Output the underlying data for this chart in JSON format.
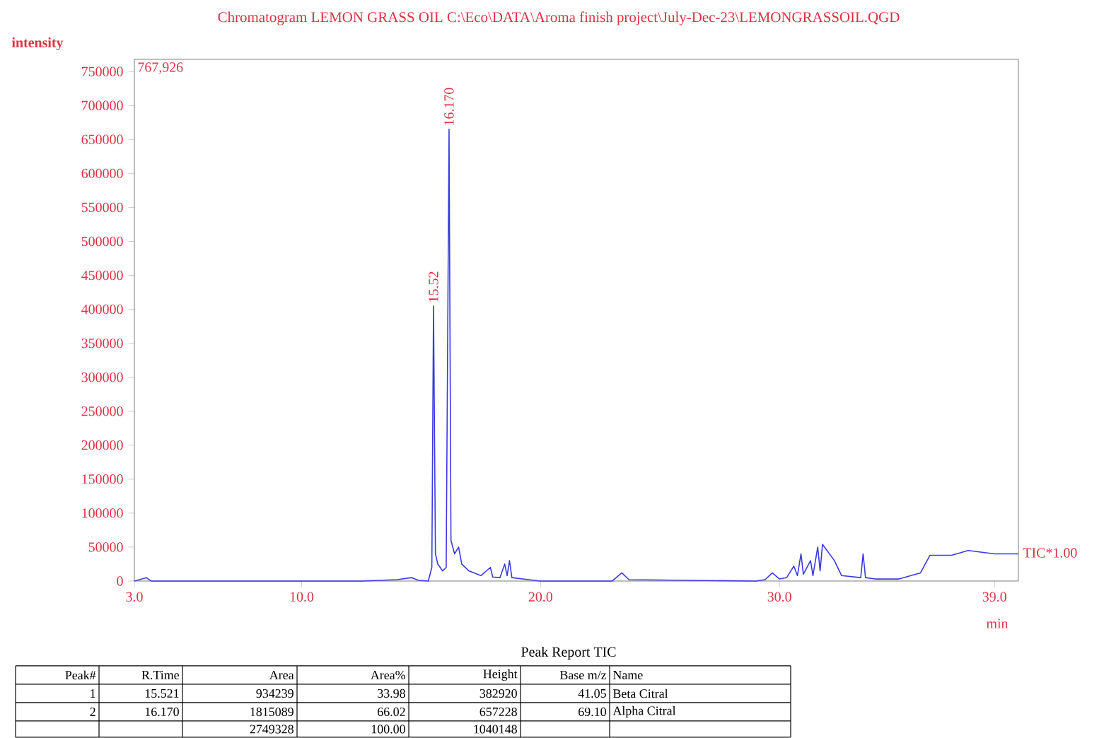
{
  "chart_data": {
    "type": "line",
    "title": "Chromatogram LEMON GRASS OIL C:\\Eco\\DATA\\Aroma finish project\\July-Dec-23\\LEMONGRASSOIL.QGD",
    "ylabel": "intensity",
    "xlabel": "min",
    "x": [
      3.0,
      3.5,
      3.7,
      12.5,
      14.0,
      14.6,
      14.9,
      15.3,
      15.45,
      15.52,
      15.6,
      15.7,
      15.9,
      16.05,
      16.17,
      16.25,
      16.4,
      16.57,
      16.7,
      17.0,
      17.5,
      17.9,
      18.0,
      18.3,
      18.5,
      18.6,
      18.7,
      18.8,
      19.5,
      20.0,
      23.0,
      23.4,
      23.7,
      29.0,
      29.4,
      29.7,
      30.0,
      30.3,
      30.6,
      30.75,
      30.9,
      31.0,
      31.3,
      31.4,
      31.6,
      31.7,
      31.8,
      32.3,
      32.6,
      33.4,
      33.5,
      33.6,
      34.0,
      35.0,
      35.9,
      36.3,
      37.2,
      37.9,
      39.0,
      40.0
    ],
    "series": [
      {
        "color": "#3a3adf",
        "values": [
          0,
          5000,
          0,
          0,
          2000,
          5000,
          1000,
          0,
          20000,
          405000,
          40000,
          25000,
          15000,
          20000,
          665000,
          60000,
          40000,
          50000,
          25000,
          15000,
          8000,
          20000,
          6000,
          5000,
          25000,
          8000,
          30000,
          5000,
          2000,
          0,
          0,
          12000,
          2000,
          0,
          2000,
          12000,
          3000,
          5000,
          22000,
          8000,
          40000,
          10000,
          30000,
          8000,
          50000,
          15000,
          54000,
          30000,
          8000,
          5000,
          40000,
          5000,
          3000,
          3000,
          12000,
          38000,
          38000,
          45000,
          40000,
          40000
        ]
      }
    ],
    "xlim": [
      3,
      40
    ],
    "ylim": [
      0,
      767926
    ],
    "xticks": [
      {
        "value": 3,
        "label": "3.0"
      },
      {
        "value": 10,
        "label": "10.0"
      },
      {
        "value": 20,
        "label": "20.0"
      },
      {
        "value": 30,
        "label": "30.0"
      },
      {
        "value": 39,
        "label": "39.0"
      }
    ],
    "yticks": [
      0,
      50000,
      100000,
      150000,
      200000,
      250000,
      300000,
      350000,
      400000,
      450000,
      500000,
      550000,
      600000,
      650000,
      700000,
      750000
    ],
    "annotations": [
      "767,926",
      {
        "text": "16.170",
        "x": 16.17,
        "y": 665000
      },
      {
        "text": "15.52",
        "x": 15.52,
        "y": 405000
      },
      "TIC*1.00",
      "Peak Report TIC",
      "Peak#",
      "R.Time",
      "Area",
      "Area%",
      "Height",
      "Base m/z",
      "Name",
      "1",
      "15.521",
      "934239",
      "33.98",
      "382920",
      "41.05",
      "Beta Citral",
      "2",
      "16.170",
      "1815089",
      "66.02",
      "657228",
      "69.10",
      "Alpha Citral",
      "2749328",
      "100.00",
      "1040148"
    ]
  }
}
